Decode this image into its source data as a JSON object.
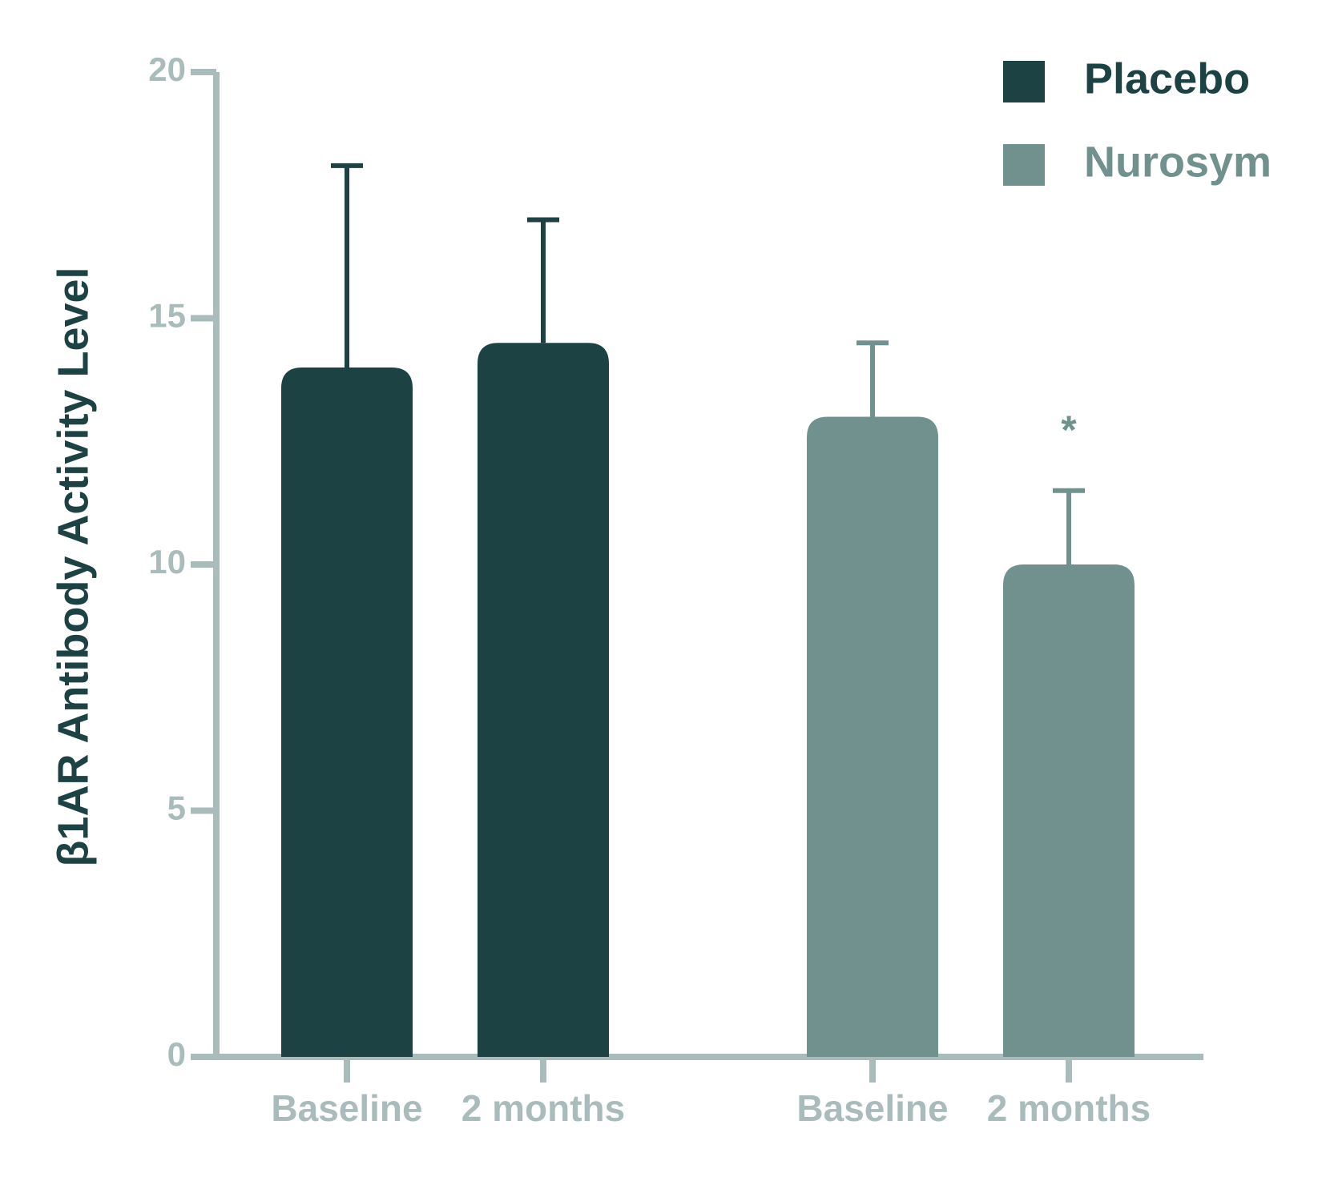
{
  "chart_data": {
    "type": "bar",
    "y_label": "β1AR Antibody Activity Level",
    "categories": [
      "Baseline",
      "2 months",
      "Baseline",
      "2 months"
    ],
    "series": [
      {
        "name": "Placebo",
        "color": "#1d4244",
        "values": [
          14,
          14.5,
          null,
          null
        ],
        "errors": [
          4.1,
          2.5,
          null,
          null
        ]
      },
      {
        "name": "Nurosym",
        "color": "#71918f",
        "values": [
          null,
          null,
          13,
          10
        ],
        "errors": [
          null,
          null,
          1.5,
          1.5
        ]
      }
    ],
    "annotation": "*",
    "ylim": [
      0,
      20
    ],
    "yticks": [
      0,
      5,
      10,
      15,
      20
    ],
    "axis_color": "#a9bcbb",
    "legend": "upper-right"
  }
}
